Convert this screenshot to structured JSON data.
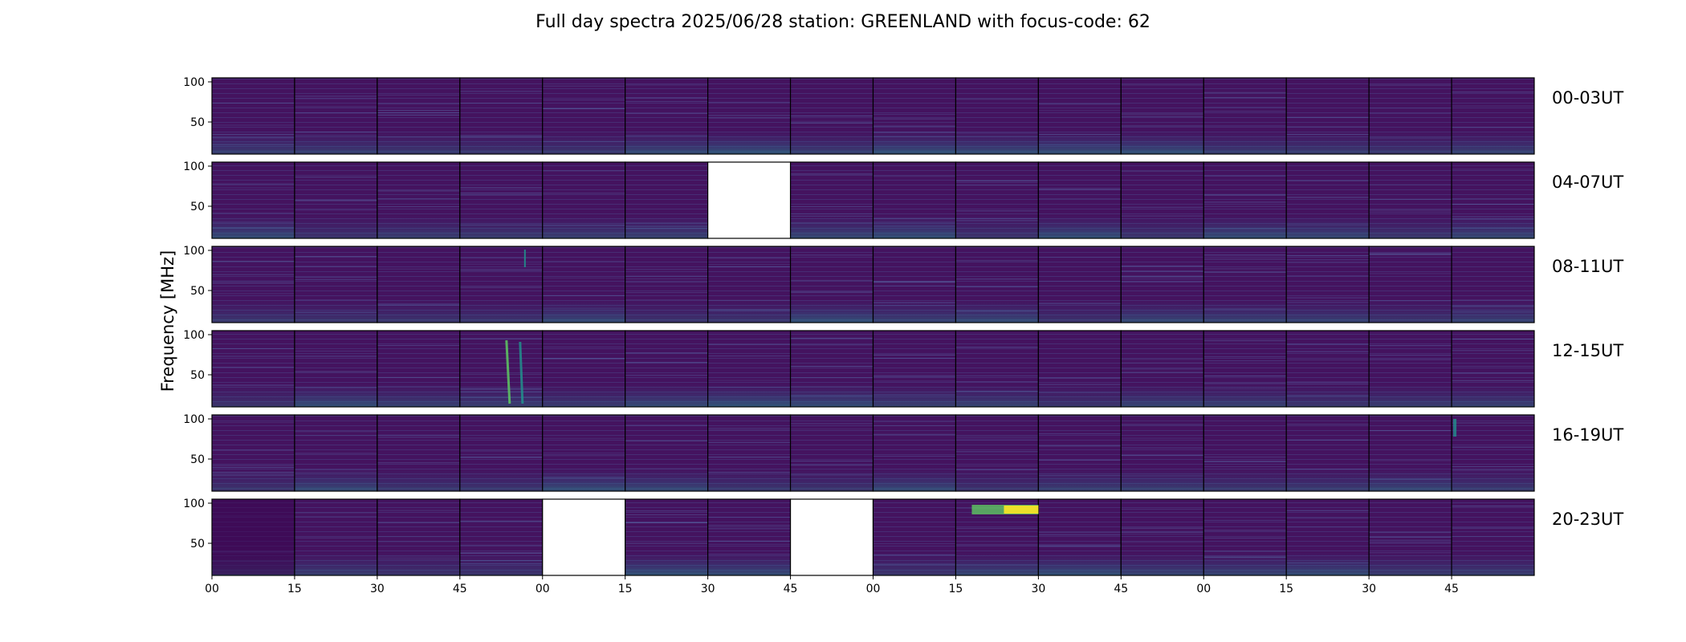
{
  "chart_data": {
    "type": "heatmap",
    "title": "Full day spectra 2025/06/28 station: GREENLAND with focus-code: 62",
    "ylabel": "Frequency [MHz]",
    "xlabel": "",
    "y_ticks": [
      100,
      50
    ],
    "x_tick_labels": [
      "00",
      "15",
      "30",
      "45",
      "00",
      "15",
      "30",
      "45",
      "00",
      "15",
      "30",
      "45",
      "00",
      "15",
      "30",
      "45"
    ],
    "columns_per_row": 16,
    "colormap": [
      "#440154",
      "#3b528b",
      "#21918c",
      "#5ec962",
      "#fde725"
    ],
    "background_color": "#44135f",
    "rows": [
      {
        "label": "00-03UT",
        "missing": []
      },
      {
        "label": "04-07UT",
        "missing": [
          6
        ]
      },
      {
        "label": "08-11UT",
        "missing": []
      },
      {
        "label": "12-15UT",
        "missing": []
      },
      {
        "label": "16-19UT",
        "missing": []
      },
      {
        "label": "20-23UT",
        "missing": [
          4,
          7
        ]
      }
    ]
  }
}
